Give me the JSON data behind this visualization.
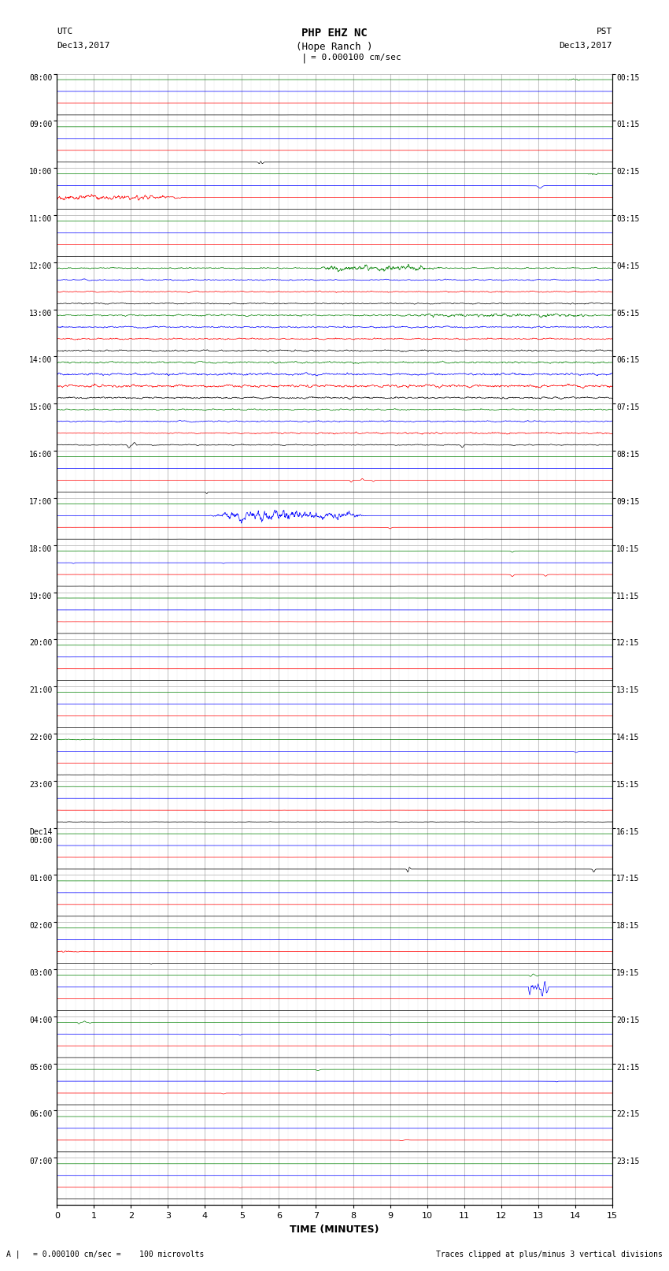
{
  "title_line1": "PHP EHZ NC",
  "title_line2": "(Hope Ranch )",
  "title_line3": "I = 0.000100 cm/sec",
  "left_header_1": "UTC",
  "left_header_2": "Dec13,2017",
  "right_header_1": "PST",
  "right_header_2": "Dec13,2017",
  "xlabel": "TIME (MINUTES)",
  "footer_left": "= 0.000100 cm/sec =    100 microvolts",
  "footer_right": "Traces clipped at plus/minus 3 vertical divisions",
  "xlim": [
    0,
    15
  ],
  "xticks": [
    0,
    1,
    2,
    3,
    4,
    5,
    6,
    7,
    8,
    9,
    10,
    11,
    12,
    13,
    14,
    15
  ],
  "background_color": "#ffffff",
  "trace_colors_cycle": [
    "black",
    "red",
    "blue",
    "green"
  ],
  "n_hours": 24,
  "n_traces_per_hour": 4,
  "hour_labels_utc": [
    "08:00",
    "09:00",
    "10:00",
    "11:00",
    "12:00",
    "13:00",
    "14:00",
    "15:00",
    "16:00",
    "17:00",
    "18:00",
    "19:00",
    "20:00",
    "21:00",
    "22:00",
    "23:00",
    "Dec14\n00:00",
    "01:00",
    "02:00",
    "03:00",
    "04:00",
    "05:00",
    "06:00",
    "07:00"
  ],
  "hour_labels_pst": [
    "00:15",
    "01:15",
    "02:15",
    "03:15",
    "04:15",
    "05:15",
    "06:15",
    "07:15",
    "08:15",
    "09:15",
    "10:15",
    "11:15",
    "12:15",
    "13:15",
    "14:15",
    "15:15",
    "16:15",
    "17:15",
    "18:15",
    "19:15",
    "20:15",
    "21:15",
    "22:15",
    "23:15"
  ],
  "fig_width": 8.5,
  "fig_height": 16.13,
  "dpi": 100
}
